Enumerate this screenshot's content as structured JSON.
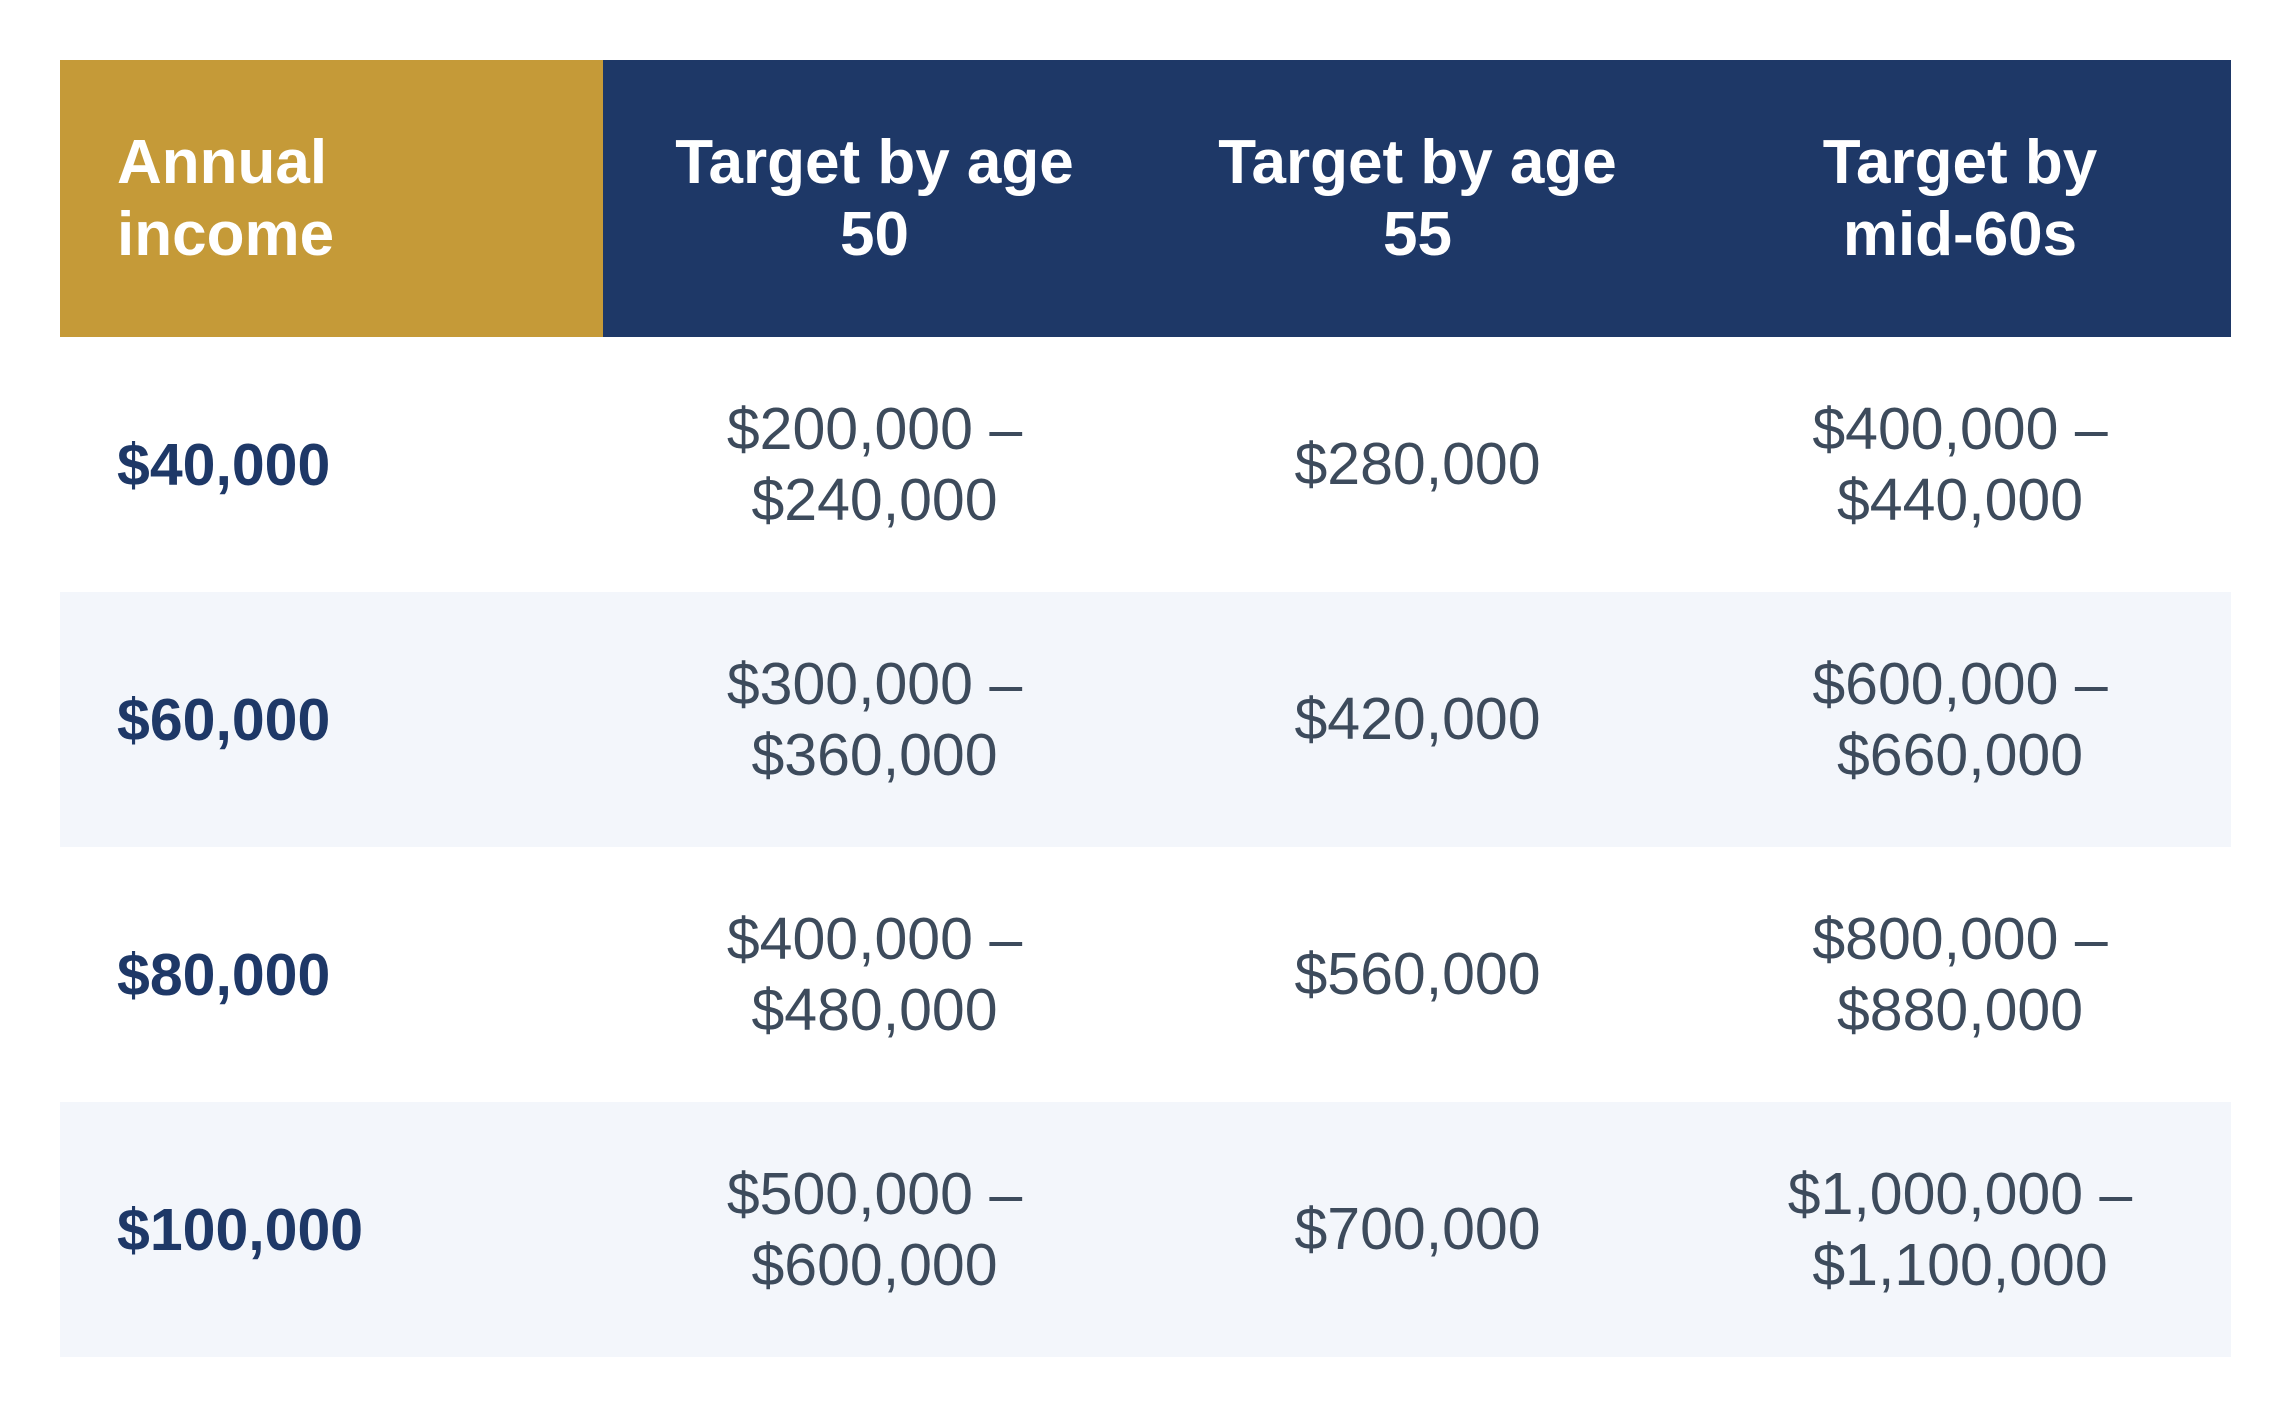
{
  "table": {
    "headers": [
      "Annual\nincome",
      "Target by age\n50",
      "Target by age\n55",
      "Target by\nmid-60s"
    ],
    "rows": [
      {
        "income": "$40,000",
        "age50": "$200,000 –\n$240,000",
        "age55": "$280,000",
        "mid60s": "$400,000 –\n$440,000"
      },
      {
        "income": "$60,000",
        "age50": "$300,000 –\n$360,000",
        "age55": "$420,000",
        "mid60s": "$600,000 –\n$660,000"
      },
      {
        "income": "$80,000",
        "age50": "$400,000 –\n$480,000",
        "age55": "$560,000",
        "mid60s": "$800,000 –\n$880,000"
      },
      {
        "income": "$100,000",
        "age50": "$500,000 –\n$600,000",
        "age55": "$700,000",
        "mid60s": "$1,000,000 –\n$1,100,000"
      }
    ]
  },
  "colors": {
    "header_accent": "#c59a38",
    "header_primary": "#1e3867",
    "income_text": "#1e3867",
    "value_text": "#3d4b5c",
    "stripe": "#f3f6fb"
  }
}
